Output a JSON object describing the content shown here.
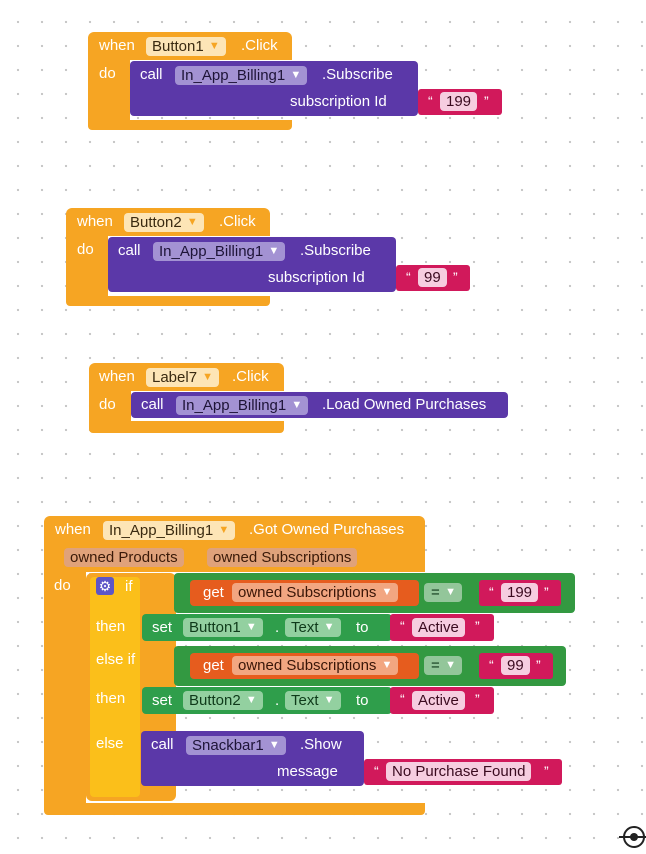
{
  "blocks": [
    {
      "when": "when",
      "component": "Button1",
      "event": ".Click",
      "do": "do",
      "call": "call",
      "target": "In_App_Billing1",
      "method": ".Subscribe",
      "arg_label": "subscription Id",
      "value": "199"
    },
    {
      "when": "when",
      "component": "Button2",
      "event": ".Click",
      "do": "do",
      "call": "call",
      "target": "In_App_Billing1",
      "method": ".Subscribe",
      "arg_label": "subscription Id",
      "value": "99"
    },
    {
      "when": "when",
      "component": "Label7",
      "event": ".Click",
      "do": "do",
      "call": "call",
      "target": "In_App_Billing1",
      "method": ".Load Owned Purchases"
    }
  ],
  "owned": {
    "when": "when",
    "component": "In_App_Billing1",
    "event": ".Got Owned Purchases",
    "params": [
      "owned Products",
      "owned Subscriptions"
    ],
    "do": "do",
    "if": "if",
    "then": "then",
    "else_if": "else if",
    "else": "else",
    "get": "get",
    "var": "owned Subscriptions",
    "op": "=",
    "cond1_value": "199",
    "cond2_value": "99",
    "set": "set",
    "to": "to",
    "dot": ".",
    "set1_component": "Button1",
    "set2_component": "Button2",
    "prop": "Text",
    "set_value": "Active",
    "call": "call",
    "snack": "Snackbar1",
    "snack_method": ".Show",
    "msg_label": "message",
    "msg_value": "No Purchase Found"
  },
  "quote_open": "“",
  "quote_close": "”",
  "icons": [
    "gear-icon",
    "locate-icon"
  ]
}
